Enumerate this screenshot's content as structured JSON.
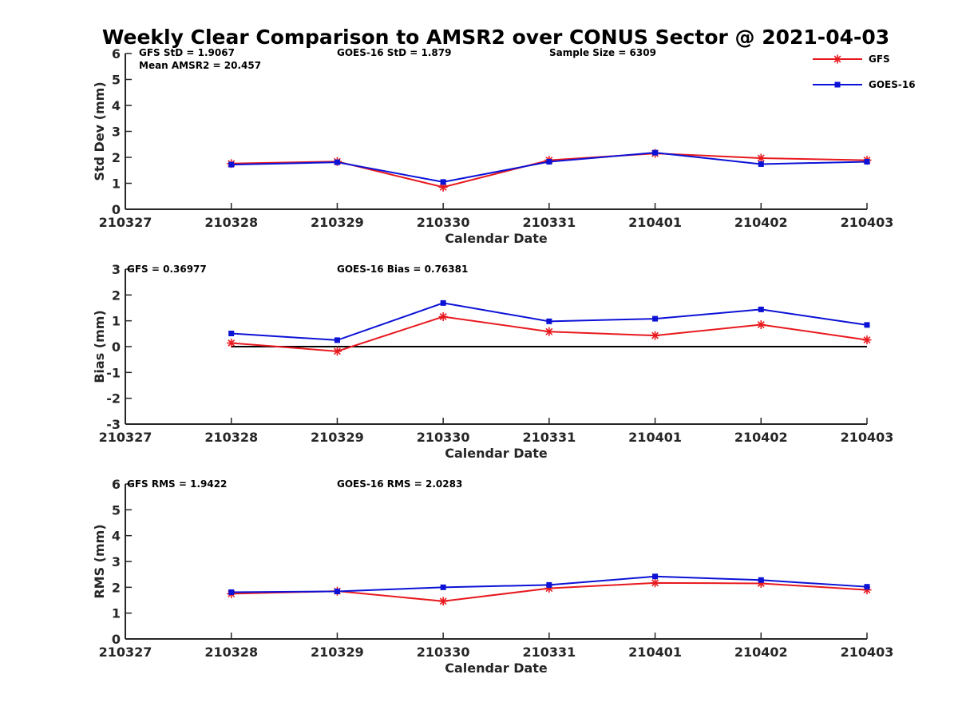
{
  "figure": {
    "title": "Weekly Clear Comparison to AMSR2 over CONUS Sector @ 2021-04-03"
  },
  "colors": {
    "gfs": "#e8191e",
    "goes": "#0b12d6",
    "axis": "#262626",
    "zero_line": "#000000"
  },
  "legend": {
    "placement": "top-right",
    "items": [
      {
        "name": "GFS",
        "color": "#e8191e",
        "marker": "asterisk"
      },
      {
        "name": "GOES-16",
        "color": "#0b12d6",
        "marker": "square"
      }
    ]
  },
  "chart_data": [
    {
      "type": "line",
      "ylabel": "Std Dev (mm)",
      "xlabel": "Calendar Date",
      "ylim": [
        0,
        6
      ],
      "yticks": [
        0,
        1,
        2,
        3,
        4,
        5,
        6
      ],
      "xticks": [
        "210327",
        "210328",
        "210329",
        "210330",
        "210331",
        "210401",
        "210402",
        "210403"
      ],
      "x": [
        "210328",
        "210329",
        "210330",
        "210331",
        "210401",
        "210402",
        "210403"
      ],
      "grid": false,
      "zero_line": false,
      "annotations": [
        "GFS StD = 1.9067",
        "Mean AMSR2 = 20.457",
        "GOES-16 StD = 1.879",
        "Sample Size = 6309"
      ],
      "series": [
        {
          "name": "GFS",
          "values": [
            1.76,
            1.84,
            0.85,
            1.89,
            2.15,
            1.97,
            1.89
          ]
        },
        {
          "name": "GOES-16",
          "values": [
            1.72,
            1.81,
            1.05,
            1.83,
            2.18,
            1.74,
            1.83
          ]
        }
      ]
    },
    {
      "type": "line",
      "ylabel": "Bias (mm)",
      "xlabel": "Calendar Date",
      "ylim": [
        -3,
        3
      ],
      "yticks": [
        -3,
        -2,
        -1,
        0,
        1,
        2,
        3
      ],
      "xticks": [
        "210327",
        "210328",
        "210329",
        "210330",
        "210331",
        "210401",
        "210402",
        "210403"
      ],
      "x": [
        "210328",
        "210329",
        "210330",
        "210331",
        "210401",
        "210402",
        "210403"
      ],
      "grid": false,
      "zero_line": true,
      "annotations": [
        "GFS = 0.36977",
        "GOES-16 Bias  = 0.76381"
      ],
      "series": [
        {
          "name": "GFS",
          "values": [
            0.14,
            -0.18,
            1.16,
            0.58,
            0.43,
            0.85,
            0.26
          ]
        },
        {
          "name": "GOES-16",
          "values": [
            0.51,
            0.25,
            1.69,
            0.98,
            1.08,
            1.44,
            0.84
          ]
        }
      ]
    },
    {
      "type": "line",
      "ylabel": "RMS (mm)",
      "xlabel": "Calendar Date",
      "ylim": [
        0,
        6
      ],
      "yticks": [
        0,
        1,
        2,
        3,
        4,
        5,
        6
      ],
      "xticks": [
        "210327",
        "210328",
        "210329",
        "210330",
        "210331",
        "210401",
        "210402",
        "210403"
      ],
      "x": [
        "210328",
        "210329",
        "210330",
        "210331",
        "210401",
        "210402",
        "210403"
      ],
      "grid": false,
      "zero_line": false,
      "annotations": [
        "GFS RMS = 1.9422",
        "GOES-16 RMS = 2.0283"
      ],
      "series": [
        {
          "name": "GFS",
          "values": [
            1.75,
            1.85,
            1.46,
            1.96,
            2.17,
            2.15,
            1.9
          ]
        },
        {
          "name": "GOES-16",
          "values": [
            1.81,
            1.84,
            2.0,
            2.09,
            2.42,
            2.28,
            2.02
          ]
        }
      ]
    }
  ]
}
